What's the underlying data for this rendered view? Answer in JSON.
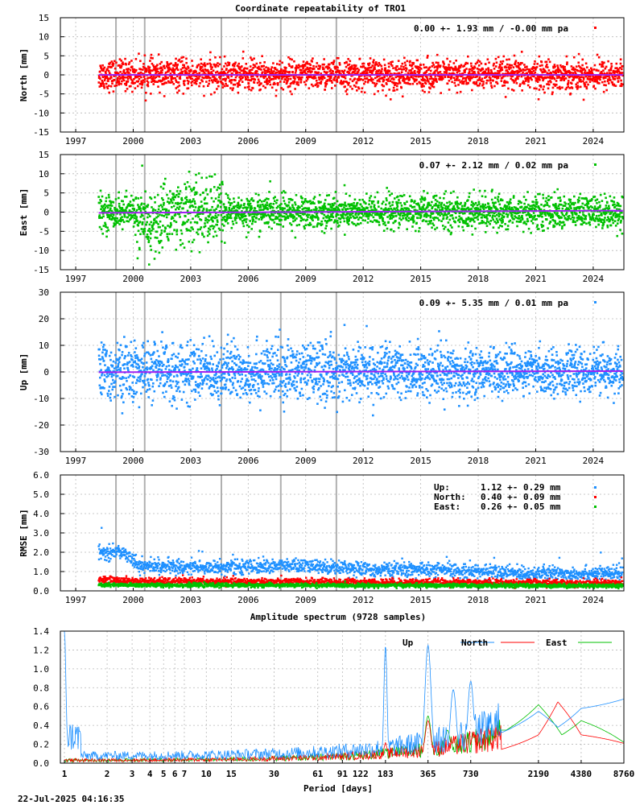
{
  "page": {
    "title": "Coordinate repeatability of TRO1",
    "spectrum_title": "Amplitude spectrum (9728 samples)",
    "timestamp": "22-Jul-2025 04:16:35"
  },
  "colors": {
    "north": "#ff0000",
    "east": "#00c000",
    "up": "#1e90ff",
    "trend": "#a020f0",
    "vertical_lines": "#b0b0b0",
    "grid": "#b8b8b8"
  },
  "chart_data": [
    {
      "id": "north",
      "type": "scatter",
      "ylabel": "North [mm]",
      "xlim": [
        1996.2,
        2025.6
      ],
      "ylim": [
        -15,
        15
      ],
      "yticks": [
        "-15",
        "-10",
        "-5",
        "0",
        "5",
        "10",
        "15"
      ],
      "ytick_values": [
        -15,
        -10,
        -5,
        0,
        5,
        10,
        15
      ],
      "xticks": [
        "1997",
        "2000",
        "2003",
        "2006",
        "2009",
        "2012",
        "2015",
        "2018",
        "2021",
        "2024"
      ],
      "xtick_values": [
        1997,
        2000,
        2003,
        2006,
        2009,
        2012,
        2015,
        2018,
        2021,
        2024
      ],
      "legend": "0.00 +- 1.93 mm / -0.00 mm pa",
      "start": 1998.2,
      "end": 2025.55,
      "sigma": 1.93,
      "trend": [
        0.0,
        0.0
      ],
      "breaks": [
        1999.1,
        2000.6,
        2004.6,
        2007.7,
        2010.6
      ],
      "grid": true
    },
    {
      "id": "east",
      "type": "scatter",
      "ylabel": "East [mm]",
      "xlim": [
        1996.2,
        2025.6
      ],
      "ylim": [
        -15,
        15
      ],
      "yticks": [
        "-15",
        "-10",
        "-5",
        "0",
        "5",
        "10",
        "15"
      ],
      "ytick_values": [
        -15,
        -10,
        -5,
        0,
        5,
        10,
        15
      ],
      "xticks": [
        "1997",
        "2000",
        "2003",
        "2006",
        "2009",
        "2012",
        "2015",
        "2018",
        "2021",
        "2024"
      ],
      "xtick_values": [
        1997,
        2000,
        2003,
        2006,
        2009,
        2012,
        2015,
        2018,
        2021,
        2024
      ],
      "legend": "0.07 +- 2.12 mm /  0.02 mm pa",
      "start": 1998.2,
      "end": 2025.55,
      "sigma": 2.12,
      "trend": [
        -0.2,
        0.4
      ],
      "breaks": [
        1999.1,
        2000.6,
        2004.6,
        2007.7,
        2010.6
      ],
      "grid": true
    },
    {
      "id": "up",
      "type": "scatter",
      "ylabel": "Up [mm]",
      "xlim": [
        1996.2,
        2025.6
      ],
      "ylim": [
        -30,
        30
      ],
      "yticks": [
        "-30",
        "-20",
        "-10",
        "0",
        "10",
        "20",
        "30"
      ],
      "ytick_values": [
        -30,
        -20,
        -10,
        0,
        10,
        20,
        30
      ],
      "xticks": [
        "1997",
        "2000",
        "2003",
        "2006",
        "2009",
        "2012",
        "2015",
        "2018",
        "2021",
        "2024"
      ],
      "xtick_values": [
        1997,
        2000,
        2003,
        2006,
        2009,
        2012,
        2015,
        2018,
        2021,
        2024
      ],
      "legend": "0.09 +- 5.35 mm /  0.01 mm pa",
      "start": 1998.2,
      "end": 2025.55,
      "sigma": 5.35,
      "trend": [
        -0.1,
        0.3
      ],
      "breaks": [
        1999.1,
        2000.6,
        2004.6,
        2007.7,
        2010.6
      ],
      "grid": true
    },
    {
      "id": "rmse",
      "type": "scatter",
      "ylabel": "RMSE [mm]",
      "xlim": [
        1996.2,
        2025.6
      ],
      "ylim": [
        0,
        6
      ],
      "yticks": [
        "0.0",
        "1.0",
        "2.0",
        "3.0",
        "4.0",
        "5.0",
        "6.0"
      ],
      "ytick_values": [
        0,
        1,
        2,
        3,
        4,
        5,
        6
      ],
      "xticks": [
        "1997",
        "2000",
        "2003",
        "2006",
        "2009",
        "2012",
        "2015",
        "2018",
        "2021",
        "2024"
      ],
      "xtick_values": [
        1997,
        2000,
        2003,
        2006,
        2009,
        2012,
        2015,
        2018,
        2021,
        2024
      ],
      "breaks": [
        1999.1,
        2000.6,
        2004.6,
        2007.7,
        2010.6
      ],
      "legend_rows": [
        {
          "label": "Up:",
          "value": "1.12 +- 0.29 mm",
          "series": "up"
        },
        {
          "label": "North:",
          "value": "0.40 +- 0.09 mm",
          "series": "north"
        },
        {
          "label": "East:",
          "value": "0.26 +- 0.05 mm",
          "series": "east"
        }
      ],
      "series": [
        {
          "id": "up",
          "means": [
            [
              1998.2,
              2.0
            ],
            [
              1999.6,
              2.0
            ],
            [
              2000.3,
              1.3
            ],
            [
              2004.0,
              1.2
            ],
            [
              2008.0,
              1.3
            ],
            [
              2011.5,
              1.2
            ],
            [
              2012.0,
              1.1
            ],
            [
              2015.0,
              1.1
            ],
            [
              2018.0,
              1.0
            ],
            [
              2021.0,
              0.9
            ],
            [
              2025.55,
              0.9
            ]
          ]
        },
        {
          "id": "north",
          "means": [
            [
              1998.2,
              0.6
            ],
            [
              2000.0,
              0.5
            ],
            [
              2012.0,
              0.45
            ],
            [
              2025.55,
              0.4
            ]
          ]
        },
        {
          "id": "east",
          "means": [
            [
              1998.2,
              0.3
            ],
            [
              2025.55,
              0.26
            ]
          ]
        }
      ],
      "grid": true
    },
    {
      "id": "spectrum",
      "type": "line",
      "title": "Amplitude spectrum (9728 samples)",
      "xlabel": "Period [days]",
      "xscale": "log",
      "xlim": [
        1,
        8760
      ],
      "ylim": [
        0,
        1.4
      ],
      "yticks": [
        "0.0",
        "0.2",
        "0.4",
        "0.6",
        "0.8",
        "1.0",
        "1.2",
        "1.4"
      ],
      "ytick_values": [
        0,
        0.2,
        0.4,
        0.6,
        0.8,
        1.0,
        1.2,
        1.4
      ],
      "xticks": [
        "1",
        "2",
        "3",
        "4",
        "5",
        "6",
        "7",
        "10",
        "15",
        "30",
        "61",
        "91",
        "122",
        "183",
        "365",
        "730",
        "2190",
        "4380",
        "8760"
      ],
      "xtick_values": [
        1,
        2,
        3,
        4,
        5,
        6,
        7,
        10,
        15,
        30,
        61,
        91,
        122,
        183,
        365,
        730,
        2190,
        4380,
        8760
      ],
      "legend": [
        {
          "name": "Up",
          "series": "up"
        },
        {
          "name": "North",
          "series": "north"
        },
        {
          "name": "East",
          "series": "east"
        }
      ],
      "series": [
        {
          "id": "up",
          "peaks": [
            [
              1,
              1.4
            ],
            [
              183,
              1.25
            ],
            [
              365,
              1.25
            ],
            [
              550,
              0.78
            ],
            [
              730,
              0.87
            ],
            [
              1100,
              0.3
            ],
            [
              2190,
              0.55
            ],
            [
              3000,
              0.38
            ],
            [
              4380,
              0.58
            ],
            [
              8760,
              0.68
            ]
          ]
        },
        {
          "id": "north",
          "peaks": [
            [
              183,
              0.22
            ],
            [
              365,
              0.45
            ],
            [
              550,
              0.22
            ],
            [
              900,
              0.1
            ],
            [
              2190,
              0.3
            ],
            [
              3000,
              0.65
            ],
            [
              4380,
              0.3
            ],
            [
              8760,
              0.21
            ]
          ]
        },
        {
          "id": "east",
          "peaks": [
            [
              183,
              0.15
            ],
            [
              365,
              0.5
            ],
            [
              500,
              0.35
            ],
            [
              800,
              0.2
            ],
            [
              1300,
              0.35
            ],
            [
              2190,
              0.62
            ],
            [
              3200,
              0.3
            ],
            [
              4380,
              0.45
            ],
            [
              8760,
              0.22
            ]
          ]
        }
      ],
      "grid": true
    }
  ]
}
